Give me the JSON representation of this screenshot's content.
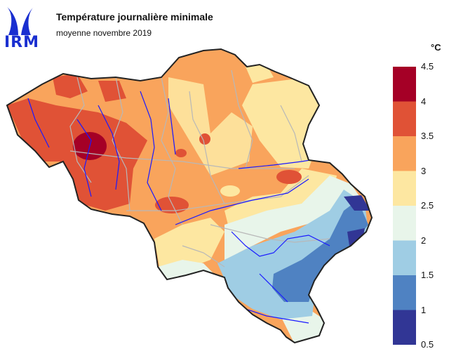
{
  "header": {
    "logo_text": "IRM",
    "title": "Température journalière minimale",
    "subtitle": "moyenne novembre 2019"
  },
  "legend": {
    "unit": "°C",
    "classes": [
      {
        "min": 0.5,
        "max": 1.0,
        "color": "#313695"
      },
      {
        "min": 1.0,
        "max": 1.5,
        "color": "#4f82c2"
      },
      {
        "min": 1.5,
        "max": 2.0,
        "color": "#9fcde4"
      },
      {
        "min": 2.0,
        "max": 2.5,
        "color": "#e8f5ea"
      },
      {
        "min": 2.5,
        "max": 3.0,
        "color": "#fde7a1"
      },
      {
        "min": 3.0,
        "max": 3.5,
        "color": "#f9a45c"
      },
      {
        "min": 3.5,
        "max": 4.0,
        "color": "#e05236"
      },
      {
        "min": 4.0,
        "max": 4.5,
        "color": "#a50026"
      }
    ],
    "ticks": [
      "4.5",
      "4",
      "3.5",
      "3",
      "2.5",
      "2",
      "1.5",
      "1",
      "0.5"
    ]
  }
}
